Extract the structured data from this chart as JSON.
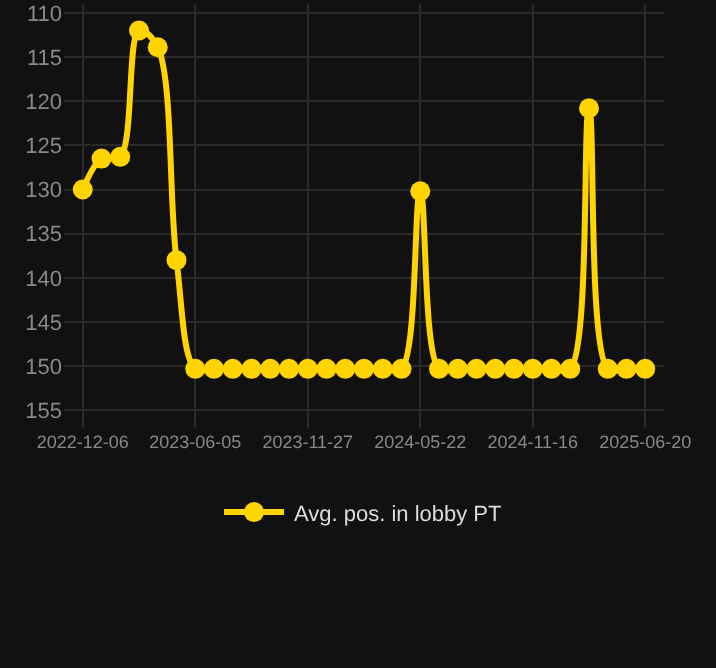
{
  "chart_data": {
    "type": "line",
    "categories": [
      "2022-12-06",
      null,
      null,
      null,
      null,
      null,
      "2023-06-05",
      null,
      null,
      null,
      null,
      null,
      "2023-11-27",
      null,
      null,
      null,
      null,
      null,
      "2024-05-22",
      null,
      null,
      null,
      null,
      null,
      "2024-11-16",
      null,
      null,
      null,
      null,
      null,
      "2025-06-20"
    ],
    "series": [
      {
        "name": "Avg. pos. in lobby PT",
        "color": "#ffd400",
        "values": [
          130,
          126.5,
          126.3,
          112,
          113.9,
          138,
          150.3,
          150.3,
          150.3,
          150.3,
          150.3,
          150.3,
          150.3,
          150.3,
          150.3,
          150.3,
          150.3,
          150.3,
          130.2,
          150.3,
          150.3,
          150.3,
          150.3,
          150.3,
          150.3,
          150.3,
          150.3,
          120.8,
          150.3,
          150.3,
          150.3
        ]
      }
    ],
    "ylim": [
      157,
      109
    ],
    "yticks": [
      110,
      115,
      120,
      125,
      130,
      135,
      140,
      145,
      150,
      155
    ],
    "grid": true,
    "legend": "bottom",
    "marker": "circle",
    "line_style": "solid"
  }
}
